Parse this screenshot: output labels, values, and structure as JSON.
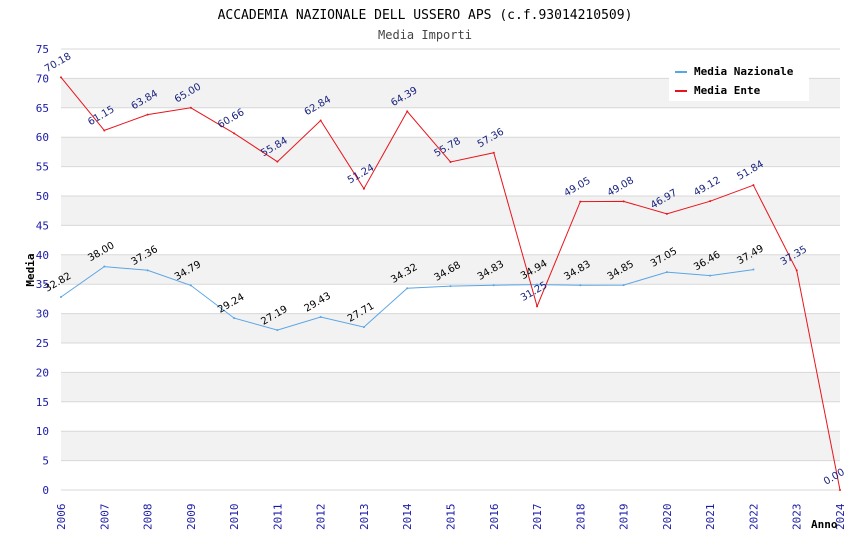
{
  "chart_data": {
    "type": "line",
    "title": "ACCADEMIA NAZIONALE DELL USSERO APS (c.f.93014210509)",
    "subtitle": "Media Importi",
    "xlabel": "Anno",
    "ylabel": "Media",
    "ylim": [
      0,
      75
    ],
    "yticks": [
      0,
      5,
      10,
      15,
      20,
      25,
      30,
      35,
      40,
      45,
      50,
      55,
      60,
      65,
      70,
      75
    ],
    "x": [
      "2006",
      "2007",
      "2008",
      "2009",
      "2010",
      "2011",
      "2012",
      "2013",
      "2014",
      "2015",
      "2016",
      "2017",
      "2018",
      "2019",
      "2020",
      "2021",
      "2022",
      "2023",
      "2024"
    ],
    "legend_position": "top-right",
    "series": [
      {
        "name": "Media Nazionale",
        "color": "#5aa5e6",
        "label_color": "#000000",
        "values": [
          32.82,
          38.0,
          37.36,
          34.79,
          29.24,
          27.19,
          29.43,
          27.71,
          34.32,
          34.68,
          34.83,
          34.94,
          34.83,
          34.85,
          37.05,
          36.46,
          37.49,
          null,
          null
        ],
        "labels": [
          "32.82",
          "38.00",
          "37.36",
          "34.79",
          "29.24",
          "27.19",
          "29.43",
          "27.71",
          "34.32",
          "34.68",
          "34.83",
          "34.94",
          "34.83",
          "34.85",
          "37.05",
          "36.46",
          "37.49",
          null,
          null
        ]
      },
      {
        "name": "Media Ente",
        "color": "#e8141b",
        "label_color": "#1a237e",
        "values": [
          70.18,
          61.15,
          63.84,
          65.0,
          60.66,
          55.84,
          62.84,
          51.24,
          64.39,
          55.78,
          57.36,
          31.25,
          49.05,
          49.08,
          46.97,
          49.12,
          51.84,
          37.35,
          0.0
        ],
        "labels": [
          "70.18",
          "61.15",
          "63.84",
          "65.00",
          "60.66",
          "55.84",
          "62.84",
          "51.24",
          "64.39",
          "55.78",
          "57.36",
          "31.25",
          "49.05",
          "49.08",
          "46.97",
          "49.12",
          "51.84",
          "37.35",
          "0.00"
        ]
      }
    ],
    "colors": {
      "grid_band": "#f2f2f2",
      "grid_line": "#d8d8d8",
      "tick_label": "#1a1aa8"
    }
  }
}
